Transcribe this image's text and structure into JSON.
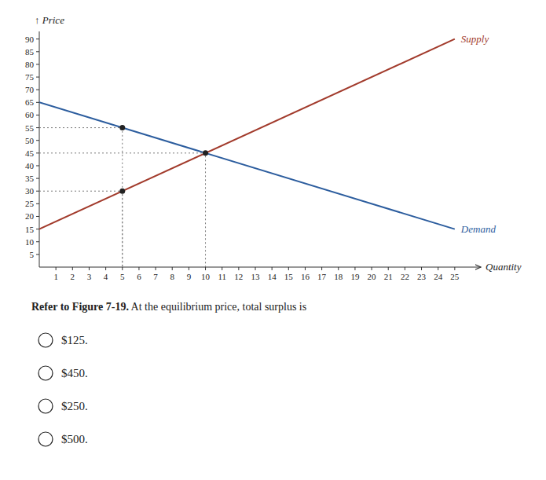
{
  "chart_data": {
    "type": "line",
    "ylabel": "↑ Price",
    "xlabel": "Quantity",
    "xlim": [
      0,
      26
    ],
    "ylim": [
      0,
      93
    ],
    "xticks": [
      1,
      2,
      3,
      4,
      5,
      6,
      7,
      8,
      9,
      10,
      11,
      12,
      13,
      14,
      15,
      16,
      17,
      18,
      19,
      20,
      21,
      22,
      23,
      24,
      25
    ],
    "yticks": [
      5,
      10,
      15,
      20,
      25,
      30,
      35,
      40,
      45,
      50,
      55,
      60,
      65,
      70,
      75,
      80,
      85,
      90
    ],
    "grid": false,
    "series": [
      {
        "name": "Supply",
        "color": "#a23b2c",
        "x": [
          0,
          25
        ],
        "values": [
          15,
          90
        ]
      },
      {
        "name": "Demand",
        "color": "#2c5d9e",
        "x": [
          0,
          25
        ],
        "values": [
          65,
          15
        ]
      }
    ],
    "dashed_lines": [
      {
        "x": 5,
        "y": 55
      },
      {
        "x": 10,
        "y": 45
      },
      {
        "x": 5,
        "y": 30
      }
    ],
    "dots": [
      {
        "x": 5,
        "y": 55
      },
      {
        "x": 5,
        "y": 30
      },
      {
        "x": 10,
        "y": 45
      }
    ],
    "question": {
      "bold": "Refer to Figure 7-19.",
      "text": " At the equilibrium price, total surplus is"
    },
    "choices": [
      "$125.",
      "$450.",
      "$250.",
      "$500."
    ]
  }
}
